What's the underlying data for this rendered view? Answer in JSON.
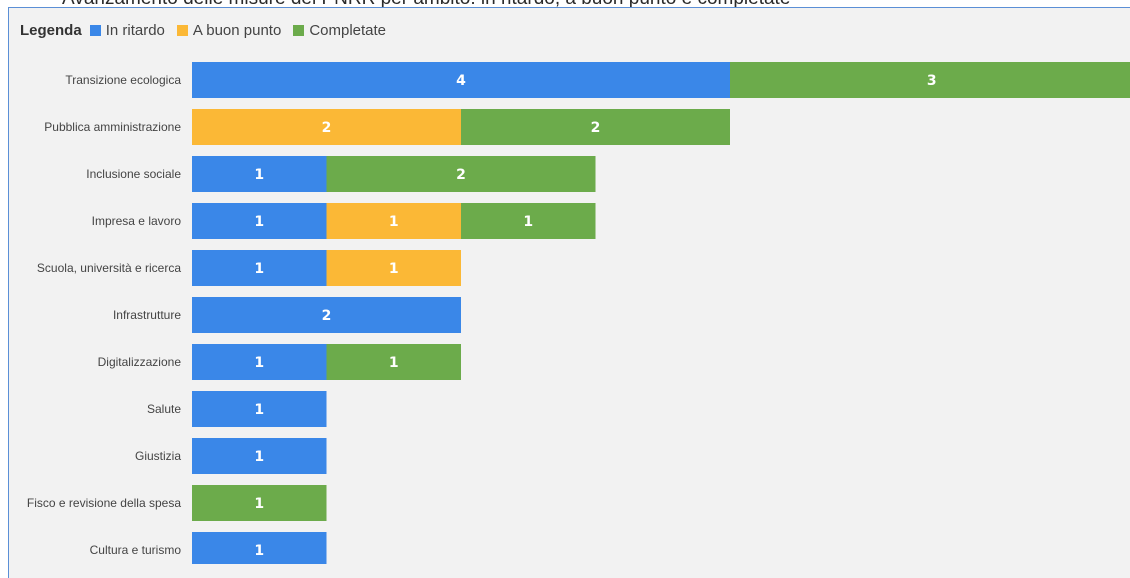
{
  "header_text": "Avanzamento delle misure del PNRR per ambito: in ritardo, a buon punto e completate",
  "legend": {
    "title": "Legenda",
    "items": [
      {
        "label": "In ritardo",
        "color": "#3a87e8"
      },
      {
        "label": "A buon punto",
        "color": "#fbb836"
      },
      {
        "label": "Completate",
        "color": "#6cab4b"
      }
    ]
  },
  "chart_data": {
    "type": "bar",
    "orientation": "horizontal",
    "stacked": true,
    "categories": [
      "Transizione ecologica",
      "Pubblica amministrazione",
      "Inclusione sociale",
      "Impresa e lavoro",
      "Scuola, università e ricerca",
      "Infrastrutture",
      "Digitalizzazione",
      "Salute",
      "Giustizia",
      "Fisco e revisione della spesa",
      "Cultura e turismo"
    ],
    "series": [
      {
        "name": "In ritardo",
        "color": "#3a87e8",
        "values": [
          4,
          0,
          1,
          1,
          1,
          2,
          1,
          1,
          1,
          0,
          1
        ]
      },
      {
        "name": "A buon punto",
        "color": "#fbb836",
        "values": [
          0,
          2,
          0,
          1,
          1,
          0,
          0,
          0,
          0,
          0,
          0
        ]
      },
      {
        "name": "Completate",
        "color": "#6cab4b",
        "values": [
          3,
          2,
          2,
          1,
          0,
          0,
          1,
          0,
          0,
          1,
          0
        ]
      }
    ],
    "xlim": [
      0,
      7
    ],
    "grid": false,
    "legend_position": "top-left"
  }
}
